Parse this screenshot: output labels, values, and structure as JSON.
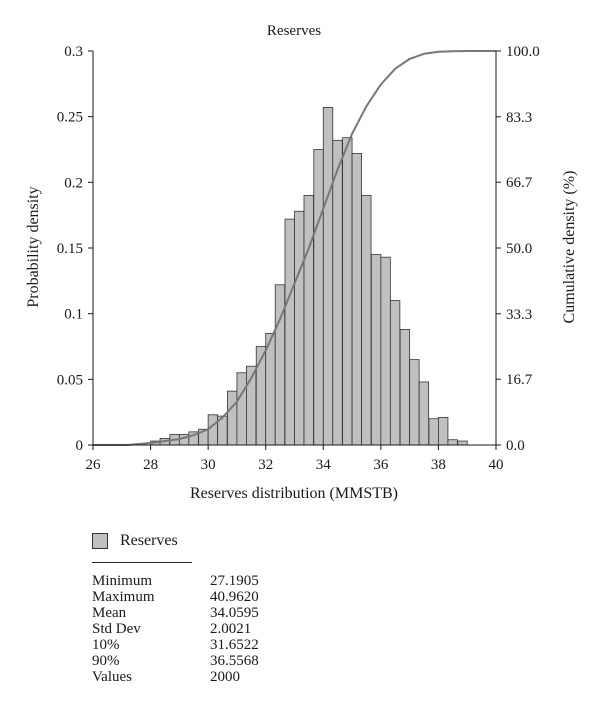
{
  "chart_data": {
    "type": "bar",
    "title": "Reserves",
    "xlabel": "Reserves distribution (MMSTB)",
    "ylabel": "Probability density",
    "y2label": "Cumulative density (%)",
    "xlim": [
      26,
      40
    ],
    "ylim": [
      0,
      0.3
    ],
    "y2lim": [
      0,
      100
    ],
    "x_ticks": [
      "26",
      "28",
      "30",
      "32",
      "34",
      "36",
      "38",
      "40"
    ],
    "y_ticks": [
      "0",
      "0.05",
      "0.1",
      "0.15",
      "0.2",
      "0.25",
      "0.3"
    ],
    "y2_ticks": [
      "0.0",
      "16.7",
      "33.3",
      "50.0",
      "66.7",
      "83.3",
      "100.0"
    ],
    "grid": false,
    "bin_width": 0.33,
    "histogram": {
      "name": "Reserves",
      "bin_starts": [
        28.0,
        28.33,
        28.67,
        29.0,
        29.33,
        29.67,
        30.0,
        30.33,
        30.67,
        31.0,
        31.33,
        31.67,
        32.0,
        32.33,
        32.67,
        33.0,
        33.33,
        33.67,
        34.0,
        34.33,
        34.67,
        35.0,
        35.33,
        35.67,
        36.0,
        36.33,
        36.67,
        37.0,
        37.33,
        37.67,
        38.0,
        38.33,
        38.67
      ],
      "values": [
        0.003,
        0.005,
        0.008,
        0.008,
        0.01,
        0.012,
        0.023,
        0.022,
        0.041,
        0.055,
        0.06,
        0.075,
        0.085,
        0.122,
        0.172,
        0.178,
        0.19,
        0.225,
        0.257,
        0.232,
        0.234,
        0.222,
        0.19,
        0.145,
        0.143,
        0.11,
        0.088,
        0.065,
        0.048,
        0.02,
        0.021,
        0.004,
        0.003
      ]
    },
    "cumulative": {
      "x": [
        26.0,
        27.2,
        28.0,
        29.0,
        29.5,
        30.0,
        30.5,
        31.0,
        31.5,
        32.0,
        32.5,
        33.0,
        33.5,
        34.0,
        34.5,
        35.0,
        35.5,
        36.0,
        36.5,
        37.0,
        37.5,
        38.0,
        38.5,
        39.0,
        40.0
      ],
      "y": [
        0.0,
        0.0,
        0.5,
        1.5,
        2.5,
        4.0,
        7.0,
        11.0,
        17.0,
        24.0,
        32.0,
        41.0,
        50.0,
        60.0,
        70.0,
        79.0,
        86.0,
        91.5,
        95.5,
        98.0,
        99.3,
        99.8,
        99.95,
        100.0,
        100.0
      ]
    },
    "colors": {
      "bar_fill": "#c0c0c0",
      "bar_stroke": "#333333",
      "line": "#777777",
      "axis": "#1a1a1a"
    }
  },
  "legend": {
    "label": "Reserves"
  },
  "stats": [
    {
      "name": "Minimum",
      "value": "27.1905"
    },
    {
      "name": "Maximum",
      "value": "40.9620"
    },
    {
      "name": "Mean",
      "value": "34.0595"
    },
    {
      "name": "Std Dev",
      "value": "2.0021"
    },
    {
      "name": "10%",
      "value": "31.6522"
    },
    {
      "name": "90%",
      "value": "36.5568"
    },
    {
      "name": "Values",
      "value": "2000"
    }
  ]
}
